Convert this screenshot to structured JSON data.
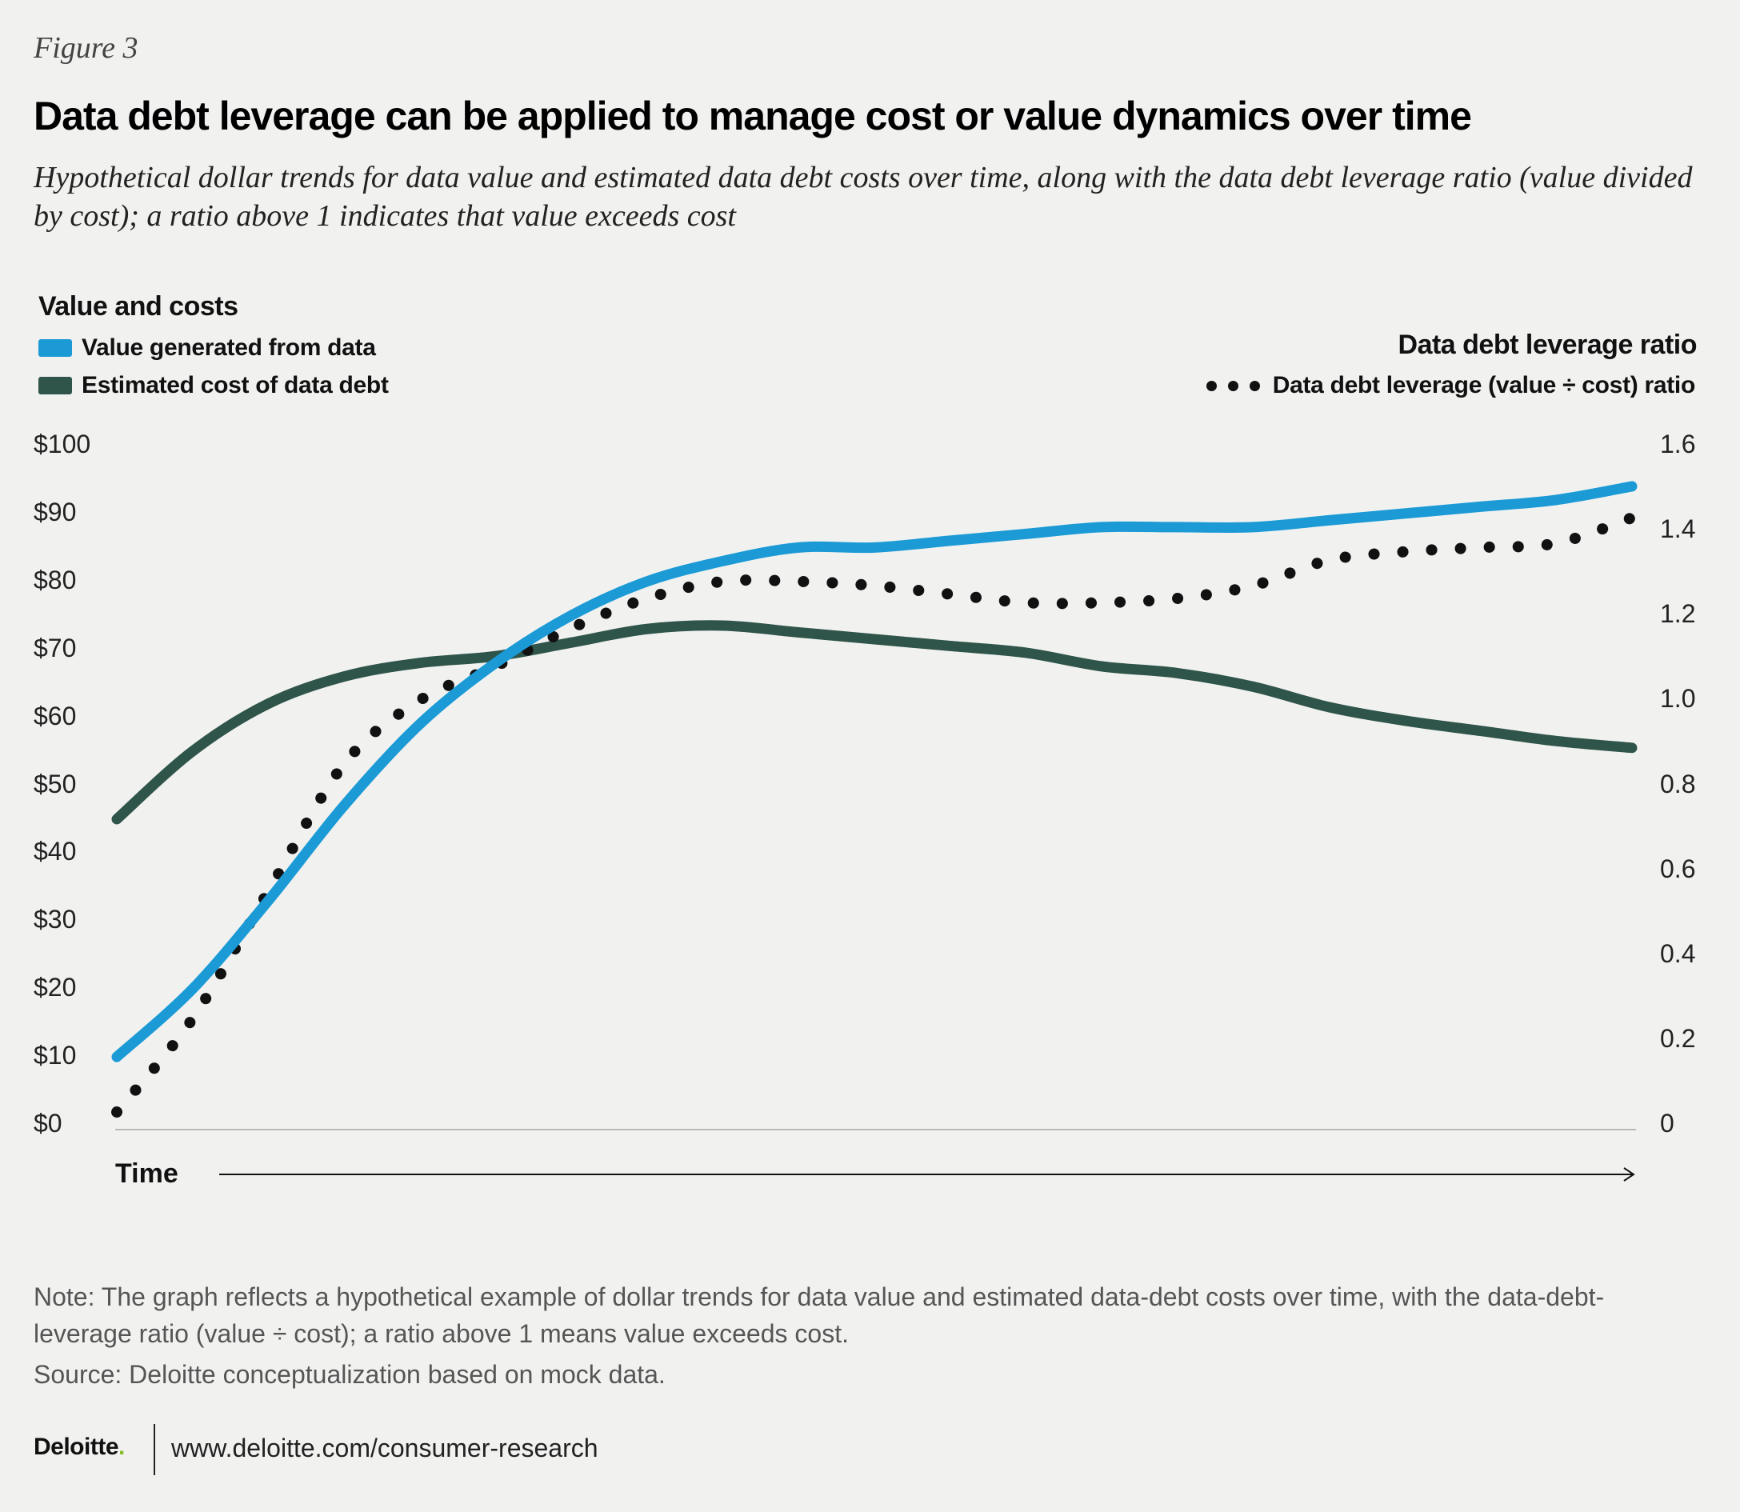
{
  "figure_label": "Figure 3",
  "title": "Data debt leverage can be applied to manage cost or value dynamics over time",
  "subtitle": "Hypothetical dollar trends for data value and estimated data debt costs over time, along with the data debt leverage ratio (value divided by cost); a ratio above 1 indicates that value exceeds cost",
  "left_axis_heading": "Value and costs",
  "right_axis_heading": "Data debt leverage ratio",
  "legend": {
    "value": "Value generated from data",
    "cost": "Estimated cost of data debt",
    "ratio": "Data debt leverage (value ÷ cost) ratio"
  },
  "colors": {
    "value": "#1b9ad6",
    "cost": "#2f5449",
    "ratio": "#111111",
    "background": "#f1f2f0"
  },
  "x_axis_label": "Time",
  "note": "Note: The graph reflects a hypothetical example of dollar trends for data value and estimated data-debt costs over time, with the data-debt-leverage ratio (value ÷ cost); a ratio above 1 means value exceeds cost.",
  "source": "Source: Deloitte conceptualization based on mock data.",
  "brand": {
    "name": "Deloitte",
    "dot": ".",
    "url": "www.deloitte.com/consumer-research"
  },
  "chart_data": {
    "type": "line",
    "x_label": "Time",
    "x": [
      0,
      5,
      10,
      15,
      20,
      25,
      30,
      35,
      40,
      45,
      50,
      55,
      60,
      65,
      70,
      75,
      80,
      85,
      90,
      95,
      100
    ],
    "left_axis": {
      "label": "Value and costs",
      "ylim": [
        0,
        100
      ],
      "ticks": [
        "$0",
        "$10",
        "$20",
        "$30",
        "$40",
        "$50",
        "$60",
        "$70",
        "$80",
        "$90",
        "$100"
      ]
    },
    "right_axis": {
      "label": "Data debt leverage ratio",
      "ylim": [
        0,
        1.6
      ],
      "ticks": [
        "0",
        "0.2",
        "0.4",
        "0.6",
        "0.8",
        "1.0",
        "1.2",
        "1.4",
        "1.6"
      ]
    },
    "series": [
      {
        "name": "Value generated from data",
        "axis": "left",
        "style": "solid",
        "values": [
          10,
          20,
          33,
          47,
          59,
          68,
          75,
          80,
          83,
          85,
          85,
          86,
          87,
          88,
          88,
          88,
          89,
          90,
          91,
          92,
          94
        ]
      },
      {
        "name": "Estimated cost of data debt",
        "axis": "left",
        "style": "solid",
        "values": [
          45,
          55,
          62,
          66,
          68,
          69,
          71,
          73,
          73.5,
          72.5,
          71.5,
          70.5,
          69.5,
          67.5,
          66.5,
          64.5,
          61.5,
          59.5,
          58,
          56.5,
          55.5
        ]
      },
      {
        "name": "Data debt leverage (value ÷ cost) ratio",
        "axis": "right",
        "style": "dotted",
        "values": [
          0.03,
          0.25,
          0.55,
          0.85,
          1.0,
          1.08,
          1.17,
          1.24,
          1.28,
          1.28,
          1.27,
          1.25,
          1.23,
          1.23,
          1.24,
          1.27,
          1.33,
          1.35,
          1.36,
          1.37,
          1.43
        ]
      }
    ]
  }
}
